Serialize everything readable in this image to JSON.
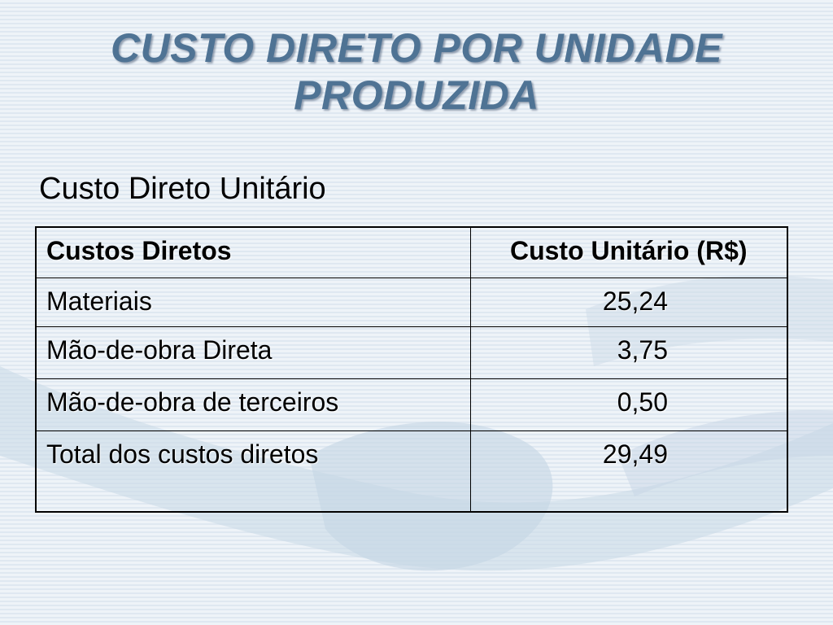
{
  "slide": {
    "title_line_1": "CUSTO DIRETO POR UNIDADE",
    "title_line_2": "PRODUZIDA",
    "subtitle": "Custo Direto Unitário",
    "title_color": "#4f7394"
  },
  "table": {
    "headers": [
      "Custos Diretos",
      "Custo Unitário (R$)"
    ],
    "rows": [
      {
        "item": "Materiais",
        "value": "25,24"
      },
      {
        "item": "Mão-de-obra Direta",
        "value": "3,75"
      },
      {
        "item": "Mão-de-obra de terceiros",
        "value": "0,50"
      },
      {
        "item": "Total dos custos diretos",
        "value": "29,49"
      }
    ]
  }
}
